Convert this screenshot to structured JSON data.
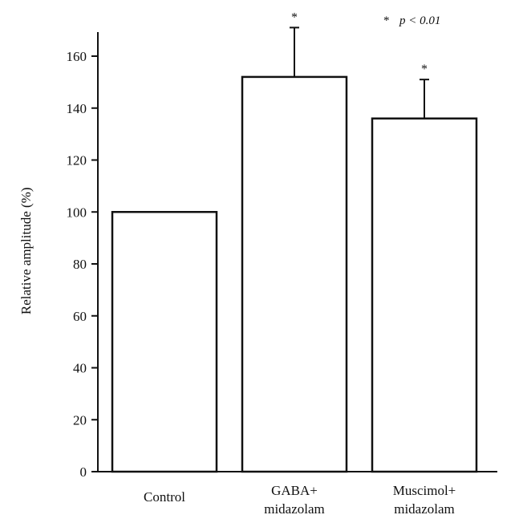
{
  "chart_data": {
    "type": "bar",
    "categories": [
      [
        "Control"
      ],
      [
        "GABA+",
        "midazolam"
      ],
      [
        "Muscimol+",
        "midazolam"
      ]
    ],
    "values": [
      100,
      152,
      136
    ],
    "error_upper": [
      0,
      19,
      15
    ],
    "significance": [
      "",
      "*",
      "*"
    ],
    "ylabel": "Relative amplitude (%)",
    "ylim": [
      0,
      170
    ],
    "yticks": [
      0,
      20,
      40,
      60,
      80,
      100,
      120,
      140,
      160
    ],
    "annotation": {
      "symbol": "*",
      "text": "p < 0.01"
    },
    "grid": false
  }
}
